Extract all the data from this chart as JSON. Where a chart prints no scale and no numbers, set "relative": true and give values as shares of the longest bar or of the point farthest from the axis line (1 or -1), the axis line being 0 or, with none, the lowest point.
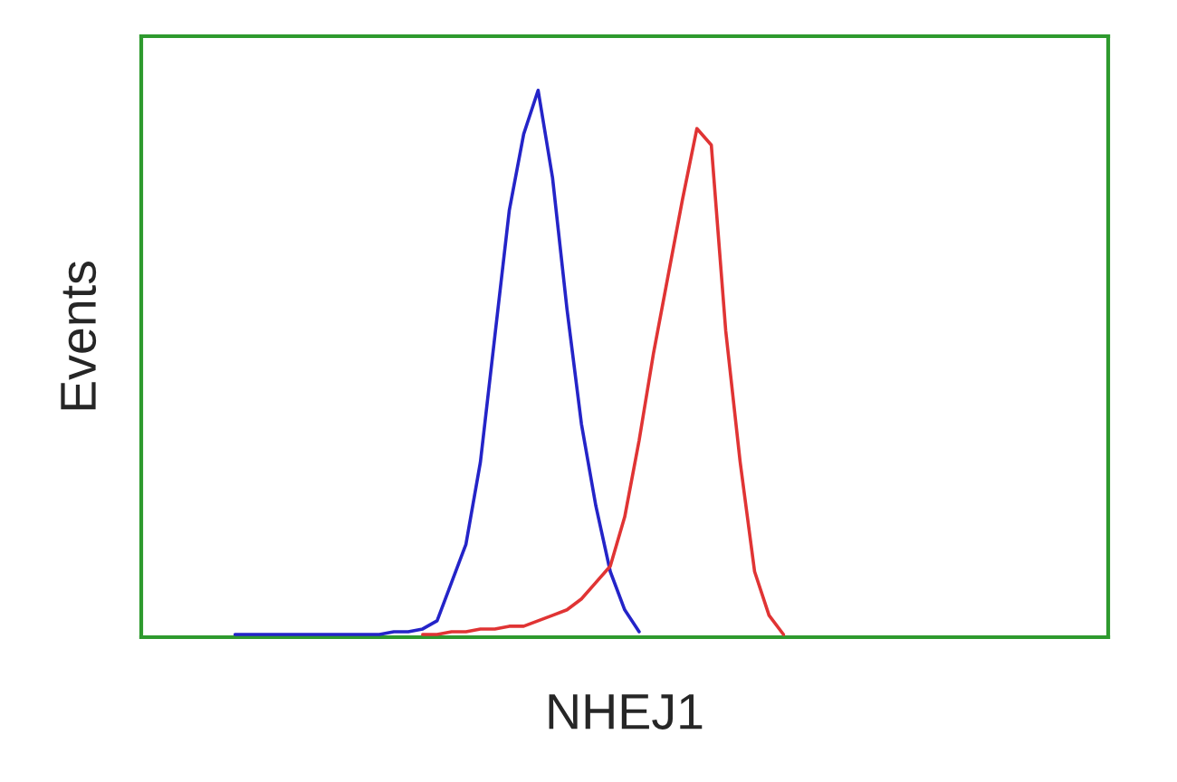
{
  "chart_data": {
    "type": "line",
    "relative": true,
    "xlabel": "NHEJ1",
    "ylabel": "Events",
    "categories": [
      null,
      null,
      null,
      null,
      null,
      null,
      null,
      null,
      null,
      null,
      null,
      null,
      null,
      null,
      null,
      null,
      null,
      null,
      null,
      null,
      null,
      null,
      null,
      null,
      null,
      null,
      null,
      null,
      null,
      null,
      null,
      null,
      null,
      null,
      null,
      null,
      null,
      null,
      null,
      null,
      null,
      null,
      null,
      null,
      null,
      null,
      null,
      null,
      null,
      null,
      null,
      null,
      null,
      null,
      null,
      null,
      null,
      null,
      null,
      null,
      null,
      null,
      null,
      null,
      null,
      null,
      null
    ],
    "series": [
      {
        "color": "#2424c8",
        "values": [
          null,
          null,
          null,
          null,
          null,
          null,
          0.005,
          0.005,
          0.005,
          0.005,
          0.005,
          0.005,
          0.005,
          0.005,
          0.005,
          0.005,
          0.005,
          0.01,
          0.01,
          0.015,
          0.03,
          0.1,
          0.17,
          0.32,
          0.55,
          0.78,
          0.92,
          1.0,
          0.84,
          0.6,
          0.39,
          0.24,
          0.12,
          0.05,
          0.01,
          null,
          null,
          null,
          null,
          null,
          null,
          null,
          null,
          null,
          null,
          null,
          null,
          null,
          null,
          null,
          null,
          null,
          null,
          null,
          null,
          null,
          null,
          null,
          null,
          null,
          null,
          null,
          null,
          null,
          null,
          null,
          null
        ]
      },
      {
        "color": "#e03434",
        "values": [
          null,
          null,
          null,
          null,
          null,
          null,
          null,
          null,
          null,
          null,
          null,
          null,
          null,
          null,
          null,
          null,
          null,
          null,
          null,
          0.005,
          0.005,
          0.01,
          0.01,
          0.015,
          0.015,
          0.02,
          0.02,
          0.03,
          0.04,
          0.05,
          0.07,
          0.1,
          0.13,
          0.22,
          0.36,
          0.52,
          0.66,
          0.8,
          0.93,
          0.9,
          0.56,
          0.32,
          0.12,
          0.04,
          0.005,
          null,
          null,
          null,
          null,
          null,
          null,
          null,
          null,
          null,
          null,
          null,
          null,
          null,
          null,
          null,
          null,
          null,
          null,
          null,
          null,
          null,
          null
        ]
      }
    ]
  }
}
